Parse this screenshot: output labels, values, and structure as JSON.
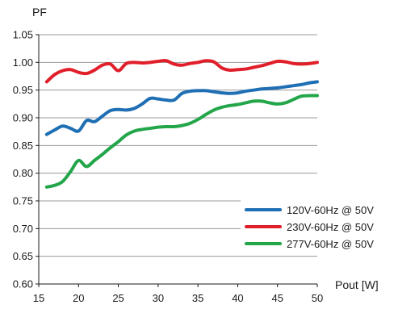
{
  "chart_data": {
    "type": "line",
    "ylabel": "PF",
    "xlabel": "Pout [W]",
    "xlim": [
      15,
      50
    ],
    "ylim": [
      0.6,
      1.05
    ],
    "x_ticks": [
      15,
      20,
      25,
      30,
      35,
      40,
      45,
      50
    ],
    "y_ticks": [
      "0.60",
      "0.65",
      "0.70",
      "0.75",
      "0.80",
      "0.85",
      "0.90",
      "0.95",
      "1.00",
      "1.05"
    ],
    "grid": "horizontal",
    "legend_position": "bottom-right",
    "series": [
      {
        "name": "120V-60Hz @ 50V",
        "color": "#1f6fb4",
        "x": [
          16,
          17,
          18,
          19,
          20,
          21,
          22,
          23,
          24,
          25,
          26,
          27,
          28,
          29,
          30,
          31,
          32,
          33,
          34,
          35,
          36,
          37,
          38,
          39,
          40,
          41,
          42,
          43,
          44,
          45,
          46,
          47,
          48,
          49,
          50
        ],
        "y": [
          0.87,
          0.878,
          0.885,
          0.881,
          0.876,
          0.895,
          0.893,
          0.903,
          0.913,
          0.915,
          0.914,
          0.917,
          0.925,
          0.935,
          0.934,
          0.932,
          0.932,
          0.944,
          0.948,
          0.949,
          0.949,
          0.947,
          0.945,
          0.944,
          0.945,
          0.948,
          0.95,
          0.952,
          0.953,
          0.954,
          0.956,
          0.958,
          0.96,
          0.963,
          0.965
        ]
      },
      {
        "name": "230V-60Hz @ 50V",
        "color": "#e01f2b",
        "x": [
          16,
          17,
          18,
          19,
          20,
          21,
          22,
          23,
          24,
          25,
          26,
          27,
          28,
          29,
          30,
          31,
          32,
          33,
          34,
          35,
          36,
          37,
          38,
          39,
          40,
          41,
          42,
          43,
          44,
          45,
          46,
          47,
          48,
          49,
          50
        ],
        "y": [
          0.965,
          0.978,
          0.985,
          0.987,
          0.982,
          0.98,
          0.986,
          0.995,
          0.997,
          0.985,
          0.998,
          1.0,
          0.999,
          1.0,
          1.002,
          1.003,
          0.997,
          0.995,
          0.998,
          1.0,
          1.003,
          1.001,
          0.99,
          0.986,
          0.987,
          0.988,
          0.991,
          0.994,
          0.998,
          1.002,
          1.001,
          0.998,
          0.997,
          0.998,
          1.0
        ]
      },
      {
        "name": "277V-60Hz @ 50V",
        "color": "#23a64a",
        "x": [
          16,
          17,
          18,
          19,
          20,
          21,
          22,
          23,
          24,
          25,
          26,
          27,
          28,
          29,
          30,
          31,
          32,
          33,
          34,
          35,
          36,
          37,
          38,
          39,
          40,
          41,
          42,
          43,
          44,
          45,
          46,
          47,
          48,
          49,
          50
        ],
        "y": [
          0.775,
          0.778,
          0.785,
          0.803,
          0.823,
          0.812,
          0.823,
          0.834,
          0.846,
          0.857,
          0.869,
          0.876,
          0.879,
          0.881,
          0.883,
          0.884,
          0.884,
          0.886,
          0.89,
          0.897,
          0.906,
          0.914,
          0.919,
          0.922,
          0.924,
          0.927,
          0.93,
          0.93,
          0.927,
          0.925,
          0.927,
          0.933,
          0.939,
          0.94,
          0.94
        ]
      }
    ]
  }
}
